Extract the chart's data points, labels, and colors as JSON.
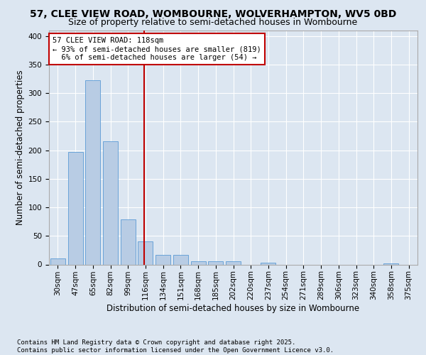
{
  "title1": "57, CLEE VIEW ROAD, WOMBOURNE, WOLVERHAMPTON, WV5 0BD",
  "title2": "Size of property relative to semi-detached houses in Wombourne",
  "xlabel": "Distribution of semi-detached houses by size in Wombourne",
  "ylabel": "Number of semi-detached properties",
  "categories": [
    "30sqm",
    "47sqm",
    "65sqm",
    "82sqm",
    "99sqm",
    "116sqm",
    "134sqm",
    "151sqm",
    "168sqm",
    "185sqm",
    "202sqm",
    "220sqm",
    "237sqm",
    "254sqm",
    "271sqm",
    "289sqm",
    "306sqm",
    "323sqm",
    "340sqm",
    "358sqm",
    "375sqm"
  ],
  "values": [
    10,
    197,
    322,
    215,
    79,
    40,
    17,
    17,
    5,
    5,
    6,
    0,
    3,
    0,
    0,
    0,
    0,
    0,
    0,
    2,
    0
  ],
  "bar_color": "#b8cce4",
  "bar_edgecolor": "#5b9bd5",
  "highlight_index": 5,
  "highlight_line_color": "#c00000",
  "annotation_text": "57 CLEE VIEW ROAD: 118sqm\n← 93% of semi-detached houses are smaller (819)\n  6% of semi-detached houses are larger (54) →",
  "annotation_box_color": "#ffffff",
  "annotation_box_edgecolor": "#c00000",
  "ylim": [
    0,
    410
  ],
  "yticks": [
    0,
    50,
    100,
    150,
    200,
    250,
    300,
    350,
    400
  ],
  "footer": "Contains HM Land Registry data © Crown copyright and database right 2025.\nContains public sector information licensed under the Open Government Licence v3.0.",
  "background_color": "#dce6f1",
  "plot_background_color": "#dce6f1",
  "grid_color": "#ffffff",
  "title1_fontsize": 10,
  "title2_fontsize": 9,
  "xlabel_fontsize": 8.5,
  "ylabel_fontsize": 8.5,
  "footer_fontsize": 6.5,
  "annotation_fontsize": 7.5,
  "tick_fontsize": 7.5
}
